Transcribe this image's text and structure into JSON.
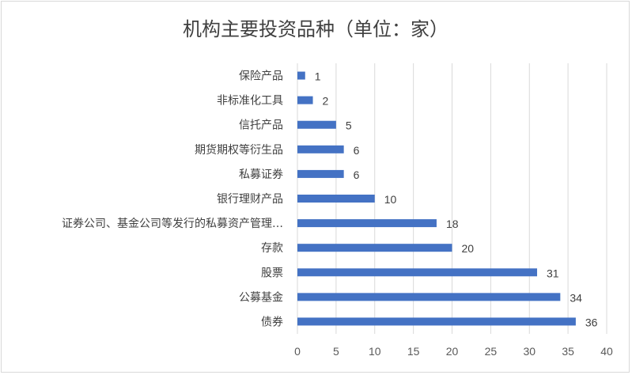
{
  "chart_data": {
    "type": "bar",
    "orientation": "horizontal",
    "title": "机构主要投资品种（单位：家）",
    "categories": [
      "保险产品",
      "非标准化工具",
      "信托产品",
      "期货期权等衍生品",
      "私募证券",
      "银行理财产品",
      "证券公司、基金公司等发行的私募资产管理…",
      "存款",
      "股票",
      "公募基金",
      "债券"
    ],
    "values": [
      1,
      2,
      5,
      6,
      6,
      10,
      18,
      20,
      31,
      34,
      36
    ],
    "xlim": [
      0,
      40
    ],
    "xticks": [
      "0",
      "5",
      "10",
      "15",
      "20",
      "25",
      "30",
      "35",
      "40"
    ],
    "data_labels": true,
    "grid": "vertical",
    "legend": "none",
    "bar_color": "#4472c4",
    "grid_color": "#d9d9d9"
  }
}
